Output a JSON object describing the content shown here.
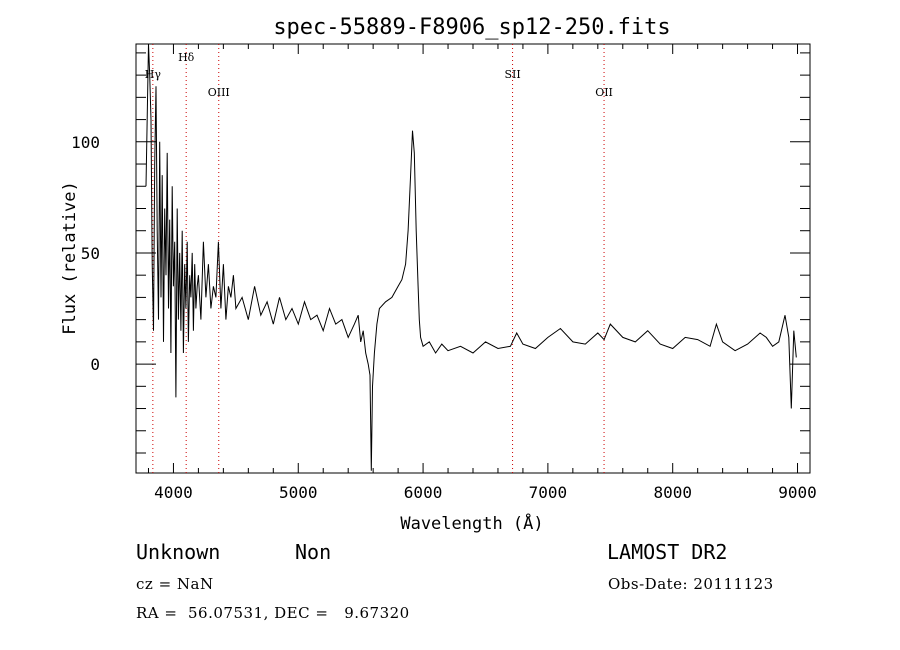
{
  "chart_data": {
    "type": "line",
    "title": "spec-55889-F8906_sp12-250.fits",
    "xlabel": "Wavelength (Å)",
    "ylabel": "Flux (relative)",
    "xlim": [
      3700,
      9100
    ],
    "ylim": [
      -49,
      144
    ],
    "xticks": [
      4000,
      5000,
      6000,
      7000,
      8000,
      9000
    ],
    "yticks": [
      0,
      50,
      100
    ],
    "grid": false,
    "line_color": "#000000",
    "marker_color": "#cc0000",
    "spectral_lines": [
      {
        "label": "Hγ",
        "wavelength": 3835
      },
      {
        "label": "Hδ",
        "wavelength": 4102
      },
      {
        "label": "OIII",
        "wavelength": 4363
      },
      {
        "label": "SII",
        "wavelength": 6717
      },
      {
        "label": "OII",
        "wavelength": 7450
      }
    ],
    "series": [
      {
        "x": [
          3780,
          3800,
          3810,
          3820,
          3830,
          3840,
          3850,
          3860,
          3870,
          3880,
          3890,
          3900,
          3910,
          3920,
          3930,
          3940,
          3950,
          3960,
          3970,
          3980,
          3990,
          4000,
          4010,
          4020,
          4030,
          4040,
          4050,
          4060,
          4070,
          4080,
          4090,
          4100,
          4110,
          4120,
          4130,
          4140,
          4150,
          4160,
          4170,
          4180,
          4190,
          4200,
          4220,
          4240,
          4260,
          4280,
          4300,
          4320,
          4340,
          4360,
          4380,
          4400,
          4420,
          4440,
          4460,
          4480,
          4500,
          4550,
          4600,
          4650,
          4700,
          4750,
          4800,
          4850,
          4900,
          4950,
          5000,
          5050,
          5100,
          5150,
          5200,
          5250,
          5300,
          5350,
          5400,
          5450,
          5480,
          5500,
          5520,
          5540,
          5560,
          5575,
          5585,
          5595,
          5610,
          5630,
          5650,
          5700,
          5750,
          5800,
          5830,
          5860,
          5880,
          5900,
          5915,
          5930,
          5945,
          5960,
          5970,
          5980,
          6000,
          6050,
          6100,
          6150,
          6200,
          6300,
          6400,
          6500,
          6600,
          6700,
          6750,
          6800,
          6900,
          7000,
          7100,
          7200,
          7300,
          7400,
          7450,
          7500,
          7600,
          7700,
          7800,
          7900,
          8000,
          8100,
          8200,
          8300,
          8350,
          8400,
          8500,
          8600,
          8700,
          8750,
          8800,
          8850,
          8900,
          8930,
          8950,
          8970,
          8990
        ],
        "y": [
          80,
          144,
          130,
          110,
          45,
          15,
          90,
          125,
          60,
          20,
          100,
          30,
          85,
          10,
          70,
          40,
          95,
          25,
          65,
          5,
          80,
          35,
          55,
          -15,
          70,
          20,
          50,
          15,
          60,
          5,
          45,
          25,
          55,
          10,
          40,
          30,
          50,
          15,
          45,
          25,
          35,
          40,
          20,
          55,
          30,
          45,
          25,
          35,
          30,
          55,
          25,
          45,
          20,
          35,
          30,
          40,
          25,
          30,
          20,
          35,
          22,
          28,
          18,
          30,
          20,
          25,
          18,
          28,
          20,
          22,
          15,
          25,
          18,
          20,
          12,
          18,
          22,
          10,
          15,
          5,
          0,
          -5,
          -48,
          -10,
          5,
          18,
          25,
          28,
          30,
          35,
          38,
          45,
          60,
          85,
          105,
          95,
          60,
          35,
          20,
          12,
          8,
          10,
          5,
          9,
          6,
          8,
          5,
          10,
          7,
          8,
          14,
          9,
          7,
          12,
          16,
          10,
          9,
          14,
          11,
          18,
          12,
          10,
          15,
          9,
          7,
          12,
          11,
          8,
          18,
          10,
          6,
          9,
          14,
          12,
          8,
          10,
          22,
          12,
          -20,
          15,
          3
        ]
      }
    ]
  },
  "info": {
    "object_type": "Unknown",
    "subclass": "Non",
    "survey": "LAMOST DR2",
    "cz": "cz = NaN",
    "obs_date": "Obs-Date: 20111123",
    "coords": "RA =  56.07531, DEC =   9.67320"
  }
}
